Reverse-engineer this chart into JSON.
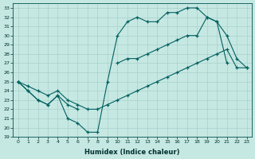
{
  "xlabel": "Humidex (Indice chaleur)",
  "ylabel": "",
  "xlim": [
    -0.5,
    23.5
  ],
  "ylim": [
    19,
    33.5
  ],
  "yticks": [
    19,
    20,
    21,
    22,
    23,
    24,
    25,
    26,
    27,
    28,
    29,
    30,
    31,
    32,
    33
  ],
  "xticks": [
    0,
    1,
    2,
    3,
    4,
    5,
    6,
    7,
    8,
    9,
    10,
    11,
    12,
    13,
    14,
    15,
    16,
    17,
    18,
    19,
    20,
    21,
    22,
    23
  ],
  "bg_color": "#c6e8e2",
  "grid_color": "#a8d0cc",
  "line_color": "#006060",
  "line1_y": [
    25.0,
    24.0,
    23.0,
    22.5,
    23.5,
    21.0,
    20.5,
    19.5,
    19.5,
    25.0,
    30.0,
    31.5,
    32.0,
    31.5,
    31.5,
    32.5,
    32.5,
    33.0,
    33.0,
    32.0,
    31.5,
    27.0,
    null,
    null
  ],
  "line2_y": [
    25.0,
    24.0,
    23.0,
    22.5,
    23.5,
    22.5,
    22.0,
    null,
    null,
    null,
    27.0,
    27.5,
    27.5,
    28.0,
    28.5,
    29.0,
    29.5,
    30.0,
    30.0,
    32.0,
    31.5,
    30.0,
    27.5,
    26.5
  ],
  "line3_y": [
    25.0,
    24.5,
    24.0,
    23.5,
    24.0,
    23.0,
    22.5,
    22.0,
    22.0,
    22.5,
    23.0,
    23.5,
    24.0,
    24.5,
    25.0,
    25.5,
    26.0,
    26.5,
    27.0,
    27.5,
    28.0,
    28.5,
    26.5,
    26.5
  ]
}
